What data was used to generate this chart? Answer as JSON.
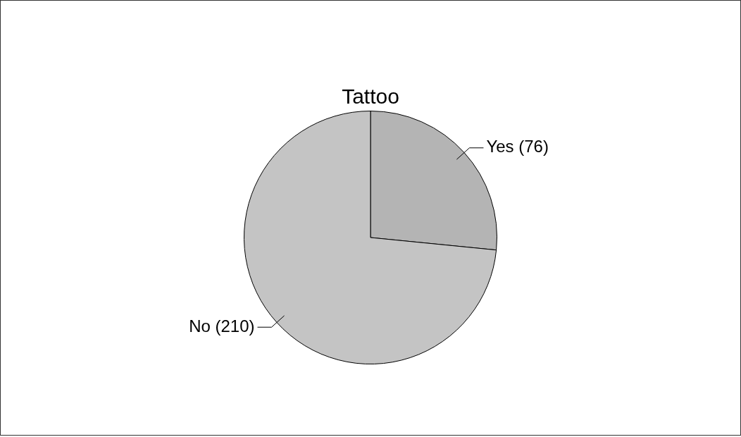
{
  "chart_data": {
    "type": "pie",
    "title": "Tattoo",
    "categories": [
      "Yes (76)",
      "No (210)"
    ],
    "values": [
      76,
      210
    ],
    "colors": [
      "#b4b4b4",
      "#c4c4c4"
    ],
    "legend": false
  }
}
